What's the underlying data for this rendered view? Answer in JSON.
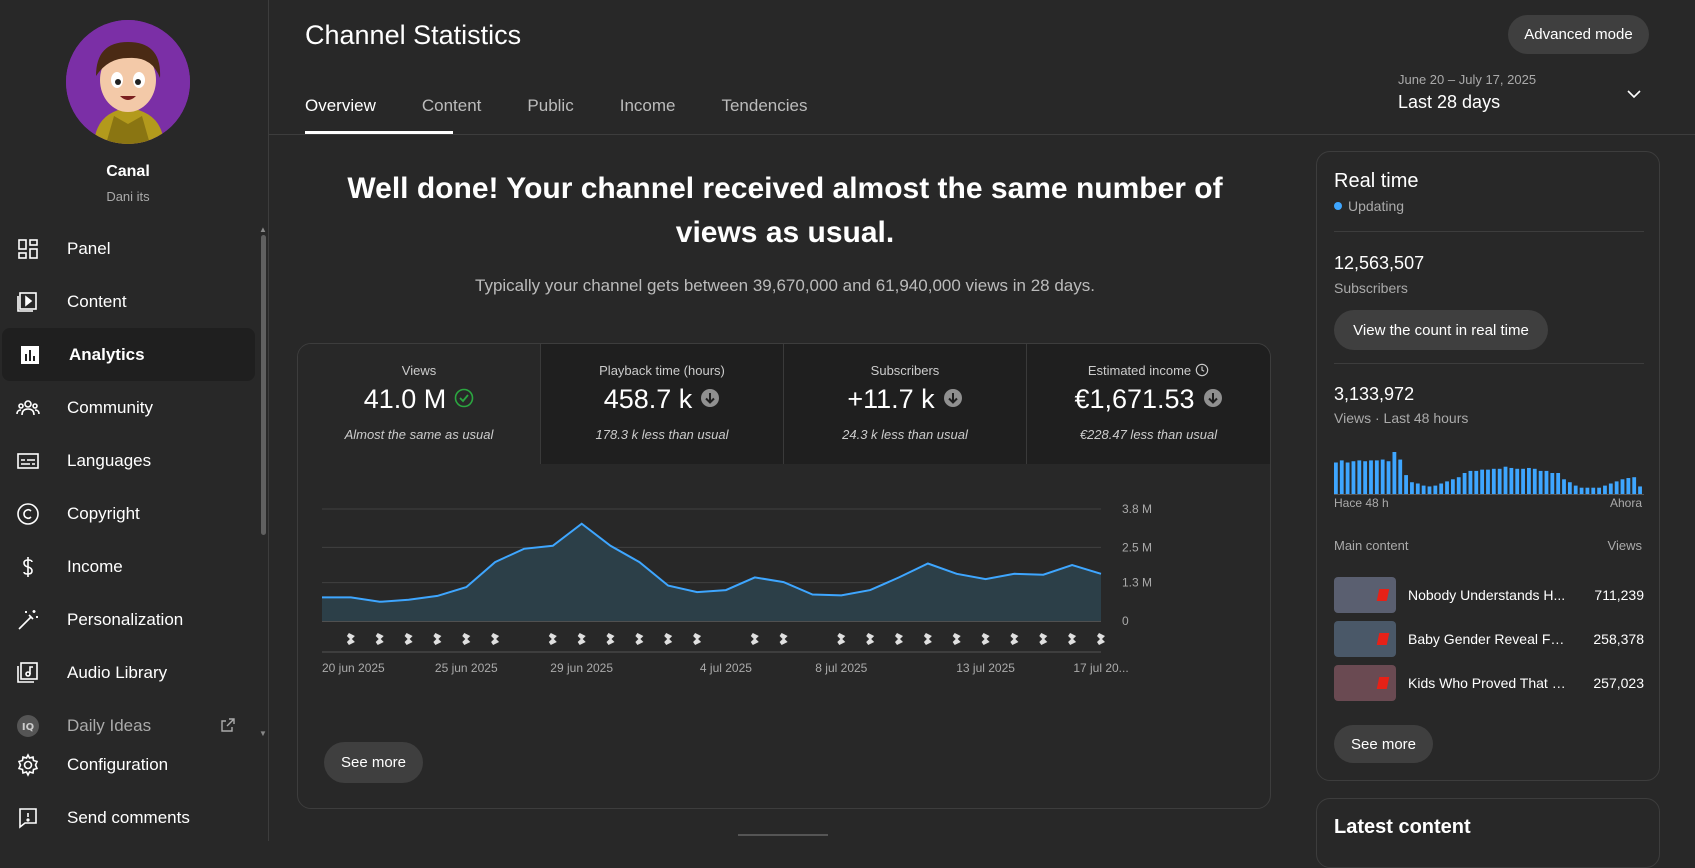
{
  "channel": {
    "name": "Canal",
    "handle": "Dani its"
  },
  "sidebar": {
    "items": [
      {
        "label": "Panel",
        "icon": "dashboard-icon"
      },
      {
        "label": "Content",
        "icon": "content-icon"
      },
      {
        "label": "Analytics",
        "icon": "analytics-icon",
        "active": true
      },
      {
        "label": "Community",
        "icon": "community-icon"
      },
      {
        "label": "Languages",
        "icon": "subtitles-icon"
      },
      {
        "label": "Copyright",
        "icon": "copyright-icon"
      },
      {
        "label": "Income",
        "icon": "dollar-icon"
      },
      {
        "label": "Personalization",
        "icon": "magic-wand-icon"
      },
      {
        "label": "Audio Library",
        "icon": "audio-library-icon"
      },
      {
        "label": "Daily Ideas",
        "icon": "daily-ideas-icon",
        "external": true
      }
    ],
    "bottom": [
      {
        "label": "Configuration",
        "icon": "gear-icon"
      },
      {
        "label": "Send comments",
        "icon": "feedback-icon"
      }
    ]
  },
  "header": {
    "title": "Channel Statistics",
    "advanced_label": "Advanced mode",
    "tabs": [
      "Overview",
      "Content",
      "Public",
      "Income",
      "Tendencies"
    ],
    "active_tab": "Overview",
    "date_range": "June 20 – July 17, 2025",
    "date_label": "Last 28 days"
  },
  "summary": {
    "headline": "Well done! Your channel received almost the same number of views as usual.",
    "subline": "Typically your channel gets between 39,670,000 and 61,940,000 views in 28 days."
  },
  "metrics": [
    {
      "label": "Views",
      "value": "41.0 M",
      "status": "check",
      "note": "Almost the same as usual"
    },
    {
      "label": "Playback time (hours)",
      "value": "458.7 k",
      "status": "down",
      "note": "178.3 k less than usual"
    },
    {
      "label": "Subscribers",
      "value": "+11.7 k",
      "status": "down",
      "note": "24.3 k less than usual"
    },
    {
      "label": "Estimated income",
      "value": "€1,671.53",
      "status": "down",
      "note": "€228.47 less than usual"
    }
  ],
  "chart_data": {
    "type": "area",
    "title": "",
    "xlabel": "",
    "ylabel": "",
    "y_ticks": [
      0,
      1.3,
      2.5,
      3.8
    ],
    "y_tick_labels": [
      "0",
      "1.3 M",
      "2.5 M",
      "3.8 M"
    ],
    "ylim": [
      0,
      3.8
    ],
    "x": [
      "20 jun",
      "21 jun",
      "22 jun",
      "23 jun",
      "24 jun",
      "25 jun",
      "26 jun",
      "27 jun",
      "28 jun",
      "29 jun",
      "30 jun",
      "1 jul",
      "2 jul",
      "3 jul",
      "4 jul",
      "5 jul",
      "6 jul",
      "7 jul",
      "8 jul",
      "9 jul",
      "10 jul",
      "11 jul",
      "12 jul",
      "13 jul",
      "14 jul",
      "15 jul",
      "16 jul",
      "17 jul"
    ],
    "x_tick_labels": [
      {
        "index": 0,
        "label": "20 jun 2025"
      },
      {
        "index": 5,
        "label": "25 jun 2025"
      },
      {
        "index": 9,
        "label": "29 jun 2025"
      },
      {
        "index": 14,
        "label": "4 jul 2025"
      },
      {
        "index": 18,
        "label": "8 jul 2025"
      },
      {
        "index": 23,
        "label": "13 jul 2025"
      },
      {
        "index": 27,
        "label": "17 jul 20..."
      }
    ],
    "series": [
      {
        "values": [
          0.8,
          0.8,
          0.65,
          0.72,
          0.85,
          1.15,
          2.0,
          2.45,
          2.55,
          3.3,
          2.55,
          2.0,
          1.2,
          0.98,
          1.05,
          1.48,
          1.32,
          0.9,
          0.87,
          1.05,
          1.48,
          1.95,
          1.6,
          1.42,
          1.6,
          1.57,
          1.9,
          1.6
        ]
      }
    ],
    "upload_markers": [
      1,
      2,
      3,
      4,
      5,
      6,
      8,
      9,
      10,
      11,
      12,
      13,
      15,
      16,
      18,
      19,
      20,
      21,
      22,
      23,
      24,
      25,
      26,
      27
    ],
    "colors": {
      "line": "#3ea6ff",
      "fill": "#2c3f48",
      "marker": "#e0e0e0"
    },
    "see_more_label": "See more"
  },
  "realtime": {
    "title": "Real time",
    "status": "Updating",
    "subscribers_value": "12,563,507",
    "subscribers_label": "Subscribers",
    "realtime_button": "View the count in real time",
    "views_value": "3,133,972",
    "views_label": "Views · Last 48 hours",
    "mini_bars": [
      0.75,
      0.8,
      0.75,
      0.78,
      0.8,
      0.78,
      0.8,
      0.8,
      0.82,
      0.78,
      1.0,
      0.82,
      0.45,
      0.28,
      0.25,
      0.2,
      0.18,
      0.2,
      0.25,
      0.3,
      0.35,
      0.4,
      0.5,
      0.55,
      0.55,
      0.58,
      0.58,
      0.6,
      0.6,
      0.65,
      0.62,
      0.6,
      0.6,
      0.62,
      0.6,
      0.55,
      0.55,
      0.5,
      0.5,
      0.35,
      0.28,
      0.2,
      0.15,
      0.15,
      0.15,
      0.15,
      0.2,
      0.25,
      0.3,
      0.35,
      0.38,
      0.4,
      0.18
    ],
    "mini_left_label": "Hace 48 h",
    "mini_right_label": "Ahora",
    "main_content_label": "Main content",
    "views_col_label": "Views",
    "content": [
      {
        "title": "Nobody Understands H...",
        "views": "711,239",
        "thumb": "#5a5f70"
      },
      {
        "title": "Baby Gender Reveal Fai...",
        "views": "258,378",
        "thumb": "#4a5868"
      },
      {
        "title": "Kids Who Proved That I...",
        "views": "257,023",
        "thumb": "#6a4a52"
      }
    ],
    "see_more_label": "See more",
    "accent": "#3ea6ff"
  },
  "latest": {
    "title": "Latest content"
  }
}
